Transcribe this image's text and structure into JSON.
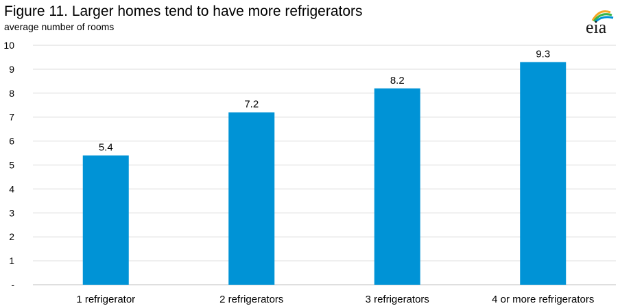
{
  "header": {
    "title": "Figure 11.  Larger homes tend to have more refrigerators",
    "subtitle": "average number of rooms",
    "logo_text": "eia"
  },
  "colors": {
    "bar": "#0093d6",
    "grid": "#d9d9d9",
    "axis": "#bfbfbf",
    "logo_swoosh": [
      "#f5a623",
      "#3ab54a",
      "#0093d6"
    ]
  },
  "chart_data": {
    "type": "bar",
    "title": "Figure 11.  Larger homes tend to have more refrigerators",
    "ylabel": "average number of rooms",
    "xlabel": "",
    "categories": [
      "1 refrigerator",
      "2 refrigerators",
      "3 refrigerators",
      "4 or more refrigerators"
    ],
    "values": [
      5.4,
      7.2,
      8.2,
      9.3
    ],
    "data_labels": [
      "5.4",
      "7.2",
      "8.2",
      "9.3"
    ],
    "ylim": [
      0,
      10
    ],
    "yticks": [
      "-",
      "1",
      "2",
      "3",
      "4",
      "5",
      "6",
      "7",
      "8",
      "9",
      "10"
    ],
    "grid": true,
    "legend": "none"
  }
}
